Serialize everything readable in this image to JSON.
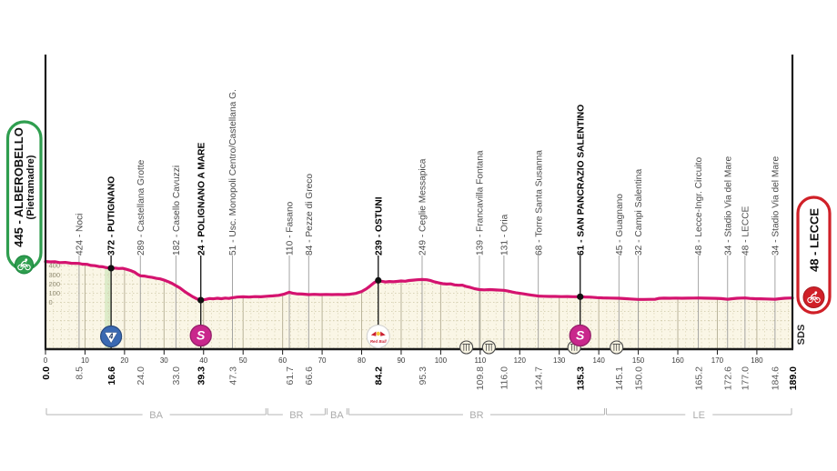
{
  "stage": {
    "start_badge_line1": "445 - ALBEROBELLO",
    "start_badge_line2": "(Pietramadre)",
    "finish_badge_label": "48 - LECCE",
    "credit": "SDS"
  },
  "chart_data": {
    "type": "area",
    "x_range": [
      0,
      189
    ],
    "x_tick_step": 10,
    "x_ticks_max": 180,
    "y_ticks": [
      0,
      100,
      200,
      300,
      400
    ],
    "start": {
      "km": 0.0,
      "elev": 445,
      "name": "ALBEROBELLO (Pietramadre)"
    },
    "finish": {
      "km": 189.0,
      "elev": 48,
      "name": "LECCE"
    },
    "waypoints": [
      {
        "km": 8.5,
        "elev": 424,
        "name": "Noci",
        "bold": false,
        "marker": null
      },
      {
        "km": 16.6,
        "elev": 372,
        "name": "PUTIGNANO",
        "bold": true,
        "marker": "kom4"
      },
      {
        "km": 24.0,
        "elev": 289,
        "name": "Castellana Grotte",
        "bold": false,
        "marker": null
      },
      {
        "km": 33.0,
        "elev": 182,
        "name": "Casello Cavuzzi",
        "bold": false,
        "marker": null
      },
      {
        "km": 39.3,
        "elev": 24,
        "name": "POLIGNANO A MARE",
        "bold": true,
        "marker": "sprint"
      },
      {
        "km": 47.3,
        "elev": 51,
        "name": "Usc. Monopoli Centro/Castellana G.",
        "bold": false,
        "marker": null
      },
      {
        "km": 61.7,
        "elev": 110,
        "name": "Fasano",
        "bold": false,
        "marker": null
      },
      {
        "km": 66.6,
        "elev": 84,
        "name": "Pezze di Greco",
        "bold": false,
        "marker": null
      },
      {
        "km": 84.2,
        "elev": 239,
        "name": "OSTUNI",
        "bold": true,
        "marker": "redbull"
      },
      {
        "km": 95.3,
        "elev": 249,
        "name": "Ceglie Messapica",
        "bold": false,
        "marker": null
      },
      {
        "km": 109.8,
        "elev": 139,
        "name": "Francavilla Fontana",
        "bold": false,
        "marker": null
      },
      {
        "km": 116.0,
        "elev": 131,
        "name": "Oria",
        "bold": false,
        "marker": null
      },
      {
        "km": 124.7,
        "elev": 68,
        "name": "Torre Santa Susanna",
        "bold": false,
        "marker": null
      },
      {
        "km": 135.3,
        "elev": 61,
        "name": "SAN PANCRAZIO SALENTINO",
        "bold": true,
        "marker": "sprint"
      },
      {
        "km": 145.1,
        "elev": 45,
        "name": "Guagnano",
        "bold": false,
        "marker": null
      },
      {
        "km": 150.0,
        "elev": 32,
        "name": "Campi Salentina",
        "bold": false,
        "marker": null
      },
      {
        "km": 165.2,
        "elev": 48,
        "name": "Lecce-Ingr. Circuito",
        "bold": false,
        "marker": null
      },
      {
        "km": 172.6,
        "elev": 34,
        "name": "Stadio Via del Mare",
        "bold": false,
        "marker": null
      },
      {
        "km": 177.0,
        "elev": 48,
        "name": "LECCE",
        "bold": false,
        "marker": null
      },
      {
        "km": 184.6,
        "elev": 34,
        "name": "Stadio Via del Mare",
        "bold": false,
        "marker": null
      }
    ],
    "provinces": [
      {
        "label": "BA",
        "from": 0,
        "to": 56.0
      },
      {
        "label": "BR",
        "from": 56.0,
        "to": 71.0
      },
      {
        "label": "BA",
        "from": 71.0,
        "to": 76.5
      },
      {
        "label": "BR",
        "from": 76.5,
        "to": 141.7
      },
      {
        "label": "LE",
        "from": 141.7,
        "to": 189
      }
    ],
    "litter_zones_km": [
      106.5,
      112.2,
      133.8,
      144.5
    ],
    "climb_band": {
      "from": 15.0,
      "to": 16.6
    },
    "profile": [
      [
        0,
        445
      ],
      [
        1.2,
        441
      ],
      [
        2.5,
        442
      ],
      [
        3.6,
        433
      ],
      [
        5,
        435
      ],
      [
        6.5,
        426
      ],
      [
        8.5,
        424
      ],
      [
        9.3,
        416
      ],
      [
        10.5,
        414
      ],
      [
        11.5,
        402
      ],
      [
        12.5,
        399
      ],
      [
        13.5,
        390
      ],
      [
        14.5,
        388
      ],
      [
        15.5,
        378
      ],
      [
        16.6,
        372
      ],
      [
        17.5,
        374
      ],
      [
        18.5,
        369
      ],
      [
        19.5,
        371
      ],
      [
        20.5,
        360
      ],
      [
        21.5,
        347
      ],
      [
        22.5,
        330
      ],
      [
        23.3,
        305
      ],
      [
        24,
        289
      ],
      [
        25,
        286
      ],
      [
        26,
        278
      ],
      [
        27,
        272
      ],
      [
        28,
        262
      ],
      [
        29,
        256
      ],
      [
        30,
        243
      ],
      [
        31,
        226
      ],
      [
        32,
        207
      ],
      [
        33,
        182
      ],
      [
        34,
        158
      ],
      [
        35,
        125
      ],
      [
        36,
        95
      ],
      [
        37.2,
        62
      ],
      [
        38.3,
        38
      ],
      [
        39.3,
        24
      ],
      [
        40.5,
        32
      ],
      [
        41.5,
        42
      ],
      [
        42.5,
        39
      ],
      [
        43.5,
        45
      ],
      [
        44.5,
        40
      ],
      [
        45.5,
        47
      ],
      [
        46.4,
        43
      ],
      [
        47.3,
        51
      ],
      [
        48.5,
        57
      ],
      [
        50,
        60
      ],
      [
        51.5,
        57
      ],
      [
        53,
        62
      ],
      [
        54.5,
        60
      ],
      [
        56,
        66
      ],
      [
        57.5,
        70
      ],
      [
        59,
        76
      ],
      [
        60.3,
        88
      ],
      [
        61.7,
        110
      ],
      [
        62.5,
        100
      ],
      [
        63.5,
        93
      ],
      [
        65,
        90
      ],
      [
        66.6,
        84
      ],
      [
        68,
        87
      ],
      [
        69.5,
        84
      ],
      [
        71,
        86
      ],
      [
        72.5,
        84
      ],
      [
        74,
        86
      ],
      [
        75.5,
        84
      ],
      [
        77,
        88
      ],
      [
        78.5,
        97
      ],
      [
        80,
        118
      ],
      [
        81.2,
        148
      ],
      [
        82.2,
        180
      ],
      [
        83.2,
        215
      ],
      [
        84.2,
        239
      ],
      [
        85,
        230
      ],
      [
        86,
        222
      ],
      [
        87,
        227
      ],
      [
        88,
        224
      ],
      [
        89,
        228
      ],
      [
        90,
        233
      ],
      [
        91,
        230
      ],
      [
        92,
        238
      ],
      [
        93,
        242
      ],
      [
        94,
        246
      ],
      [
        95.3,
        249
      ],
      [
        96.5,
        246
      ],
      [
        97.5,
        237
      ],
      [
        98.5,
        222
      ],
      [
        99.5,
        212
      ],
      [
        100.5,
        203
      ],
      [
        101.5,
        199
      ],
      [
        102.5,
        201
      ],
      [
        103.5,
        190
      ],
      [
        104.5,
        186
      ],
      [
        105.5,
        187
      ],
      [
        106.5,
        172
      ],
      [
        107.5,
        163
      ],
      [
        108.5,
        150
      ],
      [
        109.8,
        139
      ],
      [
        111,
        136
      ],
      [
        112.5,
        139
      ],
      [
        114,
        135
      ],
      [
        116,
        131
      ],
      [
        117,
        123
      ],
      [
        118,
        113
      ],
      [
        119,
        105
      ],
      [
        120,
        98
      ],
      [
        121,
        92
      ],
      [
        122,
        85
      ],
      [
        123,
        78
      ],
      [
        124.7,
        68
      ],
      [
        126,
        66
      ],
      [
        127.5,
        64
      ],
      [
        129,
        64
      ],
      [
        130.5,
        62
      ],
      [
        132,
        63
      ],
      [
        133.5,
        61
      ],
      [
        135.3,
        61
      ],
      [
        136.5,
        58
      ],
      [
        138,
        56
      ],
      [
        139.5,
        52
      ],
      [
        141,
        49
      ],
      [
        143,
        47
      ],
      [
        145.1,
        45
      ],
      [
        146.5,
        41
      ],
      [
        148,
        37
      ],
      [
        150,
        32
      ],
      [
        151.5,
        32
      ],
      [
        153,
        33
      ],
      [
        154.3,
        34
      ],
      [
        155.3,
        44
      ],
      [
        156.5,
        46
      ],
      [
        158,
        45
      ],
      [
        159.5,
        47
      ],
      [
        161,
        45
      ],
      [
        162.5,
        46
      ],
      [
        164,
        47
      ],
      [
        165.2,
        48
      ],
      [
        166.5,
        46
      ],
      [
        168,
        45
      ],
      [
        169.5,
        44
      ],
      [
        171,
        41
      ],
      [
        172.6,
        34
      ],
      [
        173.8,
        40
      ],
      [
        175,
        45
      ],
      [
        176,
        47
      ],
      [
        177,
        48
      ],
      [
        178.2,
        43
      ],
      [
        179.5,
        40
      ],
      [
        181,
        39
      ],
      [
        182.5,
        37
      ],
      [
        184.6,
        34
      ],
      [
        185.8,
        40
      ],
      [
        187,
        45
      ],
      [
        188,
        47
      ],
      [
        189,
        48
      ]
    ],
    "colors": {
      "pink": "#d4136f",
      "cream": "#faf6e6",
      "grid_major": "#b9b39a",
      "grid_dot": "#cdc7a6",
      "grid_minor": "#d9d3b4",
      "leader": "#9b9b9b",
      "label": "#4c4c4c",
      "label_strong": "#000000",
      "axis": "#1c1c1c",
      "tick_label": "#3a3a3a",
      "km_label": "#5a5a5a",
      "ylabel": "#8f8a70",
      "province": "#ababab",
      "province_line": "#b5b5b5",
      "start_green": "#2f9e4f",
      "start_green_dark": "#15813a",
      "finish_red": "#d02028",
      "finish_red_dark": "#a5181f",
      "kom_blue": "#3a69b2",
      "kom_blue_dark": "#27487c",
      "sprint_magenta": "#c9278c",
      "sprint_magenta_dark": "#951e69",
      "redbull_red": "#cc2133",
      "redbull_yellow": "#f6c93e",
      "climb_band": "#dcebc8"
    }
  }
}
